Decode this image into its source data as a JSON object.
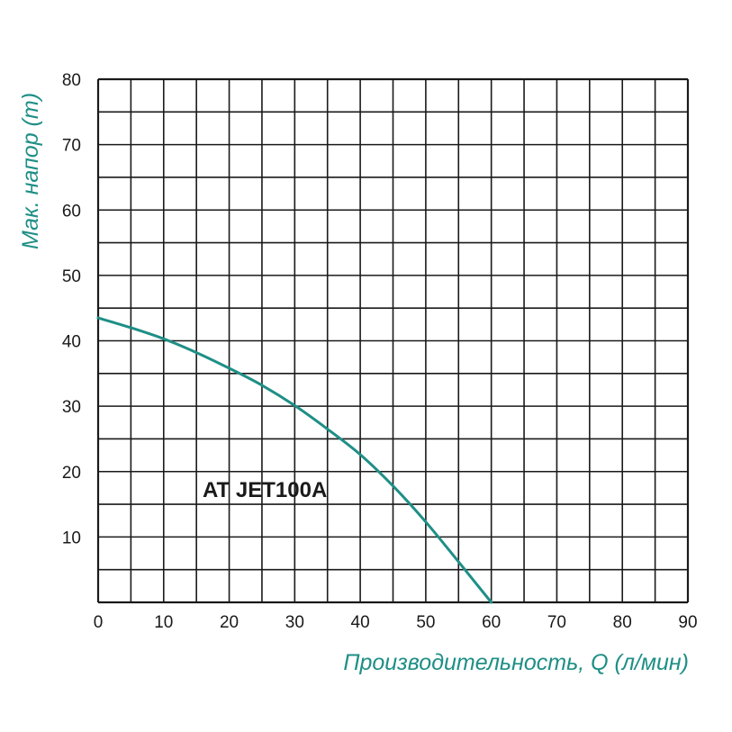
{
  "chart_data": {
    "type": "line",
    "title": "",
    "xlabel": "Производительность, Q (л/мин)",
    "ylabel": "Мак. напор (m)",
    "xlim": [
      0,
      90
    ],
    "ylim": [
      0,
      80
    ],
    "x_ticks": [
      "0",
      "10",
      "20",
      "30",
      "40",
      "50",
      "60",
      "70",
      "80",
      "90"
    ],
    "y_ticks": [
      "10",
      "20",
      "30",
      "40",
      "50",
      "60",
      "70",
      "80"
    ],
    "grid": true,
    "grid_step_x": 5,
    "grid_step_y": 5,
    "series": [
      {
        "name": "AT JET100A",
        "color": "#1e8f86",
        "points": [
          [
            0,
            43.5
          ],
          [
            5,
            42
          ],
          [
            10,
            40.3
          ],
          [
            15,
            38.2
          ],
          [
            20,
            35.8
          ],
          [
            25,
            33.2
          ],
          [
            30,
            30.1
          ],
          [
            35,
            26.5
          ],
          [
            40,
            22.6
          ],
          [
            45,
            17.8
          ],
          [
            50,
            12.3
          ],
          [
            55,
            6.2
          ],
          [
            60,
            0
          ]
        ]
      }
    ],
    "colors": {
      "curve": "#1e8f86",
      "axis_title": "#1e8f86",
      "grid": "#1a1a1a",
      "text": "#1a1a1a"
    }
  }
}
